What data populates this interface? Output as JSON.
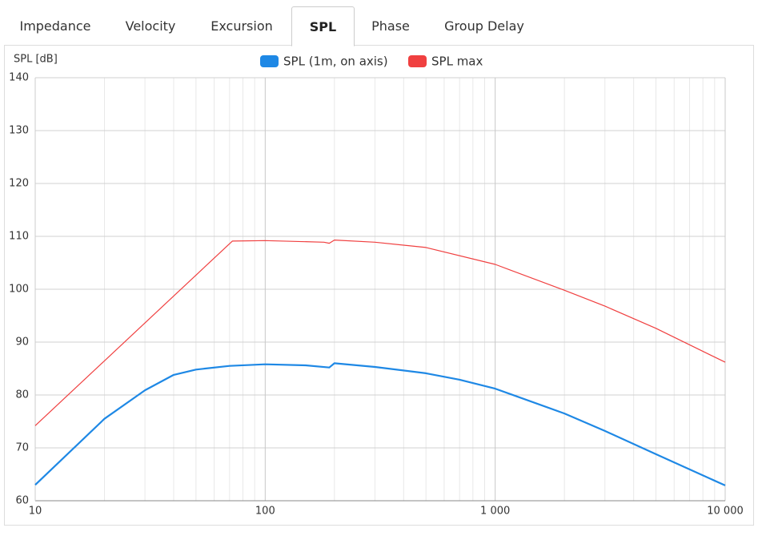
{
  "tabs": [
    {
      "label": "Impedance"
    },
    {
      "label": "Velocity"
    },
    {
      "label": "Excursion"
    },
    {
      "label": "SPL",
      "active": true
    },
    {
      "label": "Phase"
    },
    {
      "label": "Group Delay"
    }
  ],
  "chart_data": {
    "type": "line",
    "y_label": "SPL [dB]",
    "xscale": "log",
    "grid": true,
    "legend": "top",
    "xlim": [
      10,
      10000
    ],
    "xticks": [
      10,
      100,
      {
        "value": 1000,
        "label": "1 000"
      },
      {
        "value": 10000,
        "label": "10 000"
      }
    ],
    "ylim": [
      60,
      140
    ],
    "yticks": [
      60,
      70,
      80,
      90,
      100,
      110,
      120,
      130,
      140
    ],
    "series": [
      {
        "name": "SPL (1m, on axis)",
        "color": "#1e88e5",
        "x": [
          10,
          20,
          30,
          40,
          50,
          70,
          100,
          150,
          190,
          200,
          300,
          500,
          700,
          1000,
          2000,
          3000,
          5000,
          10000
        ],
        "values": [
          63,
          75.5,
          80.9,
          83.8,
          84.8,
          85.5,
          85.8,
          85.6,
          85.2,
          86,
          85.3,
          84.1,
          82.9,
          81.2,
          76.5,
          73.2,
          68.8,
          62.9
        ]
      },
      {
        "name": "SPL max",
        "color": "#f04040",
        "x": [
          10,
          72,
          100,
          180,
          190,
          200,
          300,
          500,
          1000,
          2000,
          3000,
          5000,
          10000
        ],
        "values": [
          74.2,
          109.1,
          109.2,
          108.9,
          108.7,
          109.3,
          108.9,
          107.9,
          104.7,
          99.8,
          96.8,
          92.6,
          86.2
        ]
      }
    ]
  }
}
